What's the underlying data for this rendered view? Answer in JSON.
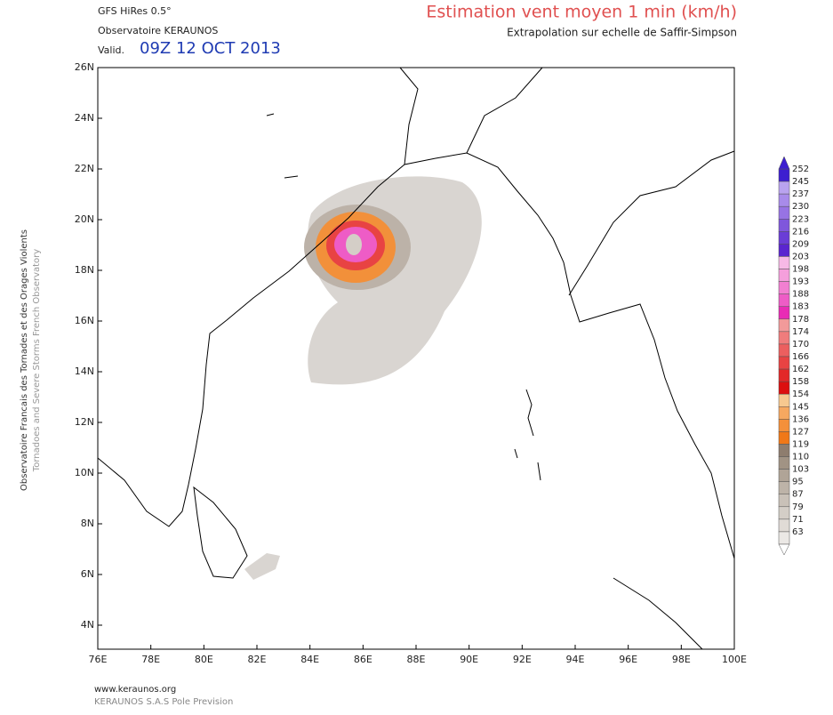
{
  "header": {
    "model": "GFS HiRes 0.5°",
    "source": "Observatoire KERAUNOS",
    "valid_label": "Valid.",
    "valid_time": "09Z 12 OCT 2013",
    "title": "Estimation vent moyen 1 min (km/h)",
    "subtitle": "Extrapolation sur echelle de Saffir-Simpson"
  },
  "side_text": [
    "Observatoire Francais des Tornades et des Orages Violents",
    "Tornadoes and Severe Storms French Observatory"
  ],
  "map": {
    "lat_labels": [
      "26N",
      "24N",
      "22N",
      "20N",
      "18N",
      "16N",
      "14N",
      "12N",
      "10N",
      "8N",
      "6N",
      "4N"
    ],
    "lon_labels": [
      "76E",
      "78E",
      "80E",
      "82E",
      "84E",
      "86E",
      "88E",
      "90E",
      "92E",
      "94E",
      "96E",
      "98E",
      "100E"
    ]
  },
  "colorbar": {
    "levels": [
      252,
      245,
      237,
      230,
      223,
      216,
      209,
      203,
      198,
      193,
      188,
      183,
      178,
      174,
      170,
      166,
      162,
      158,
      154,
      145,
      136,
      127,
      119,
      110,
      103,
      95,
      87,
      79,
      71,
      63
    ],
    "colors": [
      "#3d1fd0",
      "#b9a3ef",
      "#a88bea",
      "#9773e4",
      "#7f57dc",
      "#6a3dd6",
      "#5a25cf",
      "#f7b9e6",
      "#f59fdc",
      "#f27fd1",
      "#ee5cc6",
      "#e92bb5",
      "#f29a9a",
      "#f07c7c",
      "#ec5f5f",
      "#e84343",
      "#e32828",
      "#dc0f0f",
      "#f7c88f",
      "#f6a860",
      "#f4903a",
      "#f07818",
      "#8e7d6e",
      "#a19384",
      "#b0a497",
      "#bdb3a8",
      "#c9c1b8",
      "#d4cec7",
      "#e0dbd6",
      "#ebe8e5"
    ]
  },
  "footer": {
    "site": "www.keraunos.org",
    "company": "KERAUNOS S.A.S Pole Prevision"
  }
}
